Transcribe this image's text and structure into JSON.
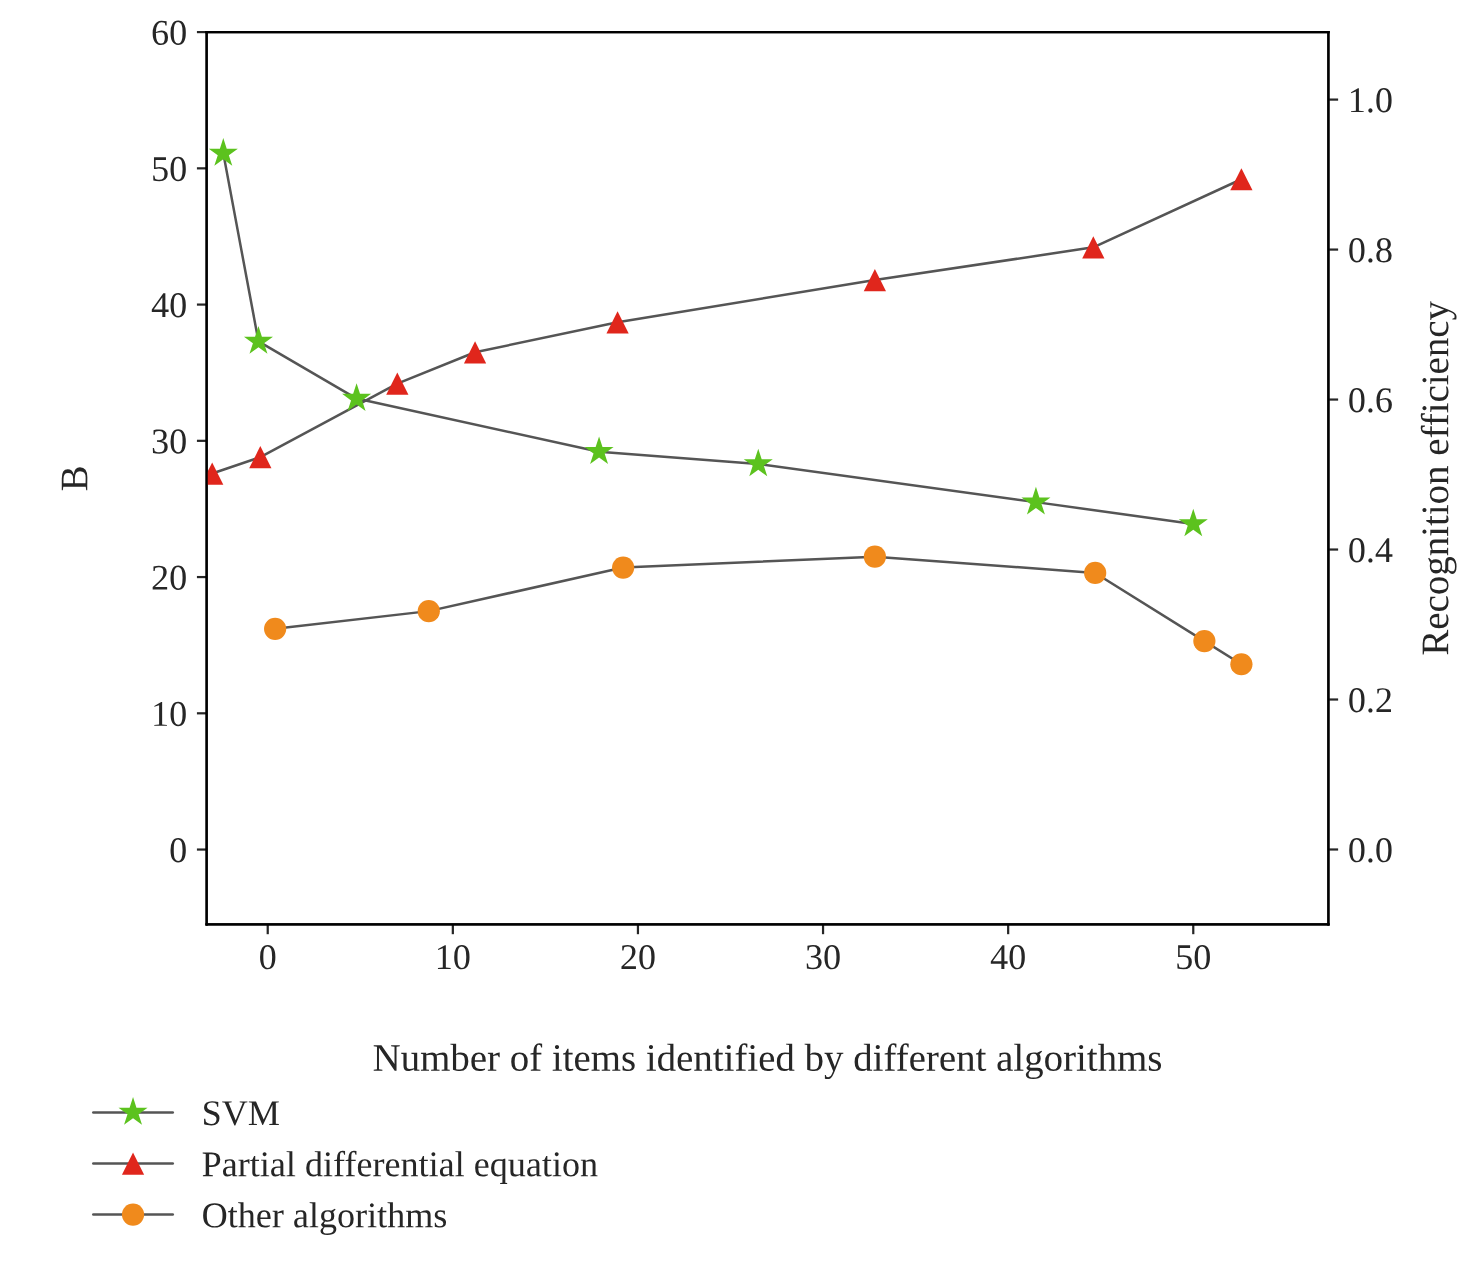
{
  "chart_data": {
    "type": "line",
    "xlabel": "Number of items identified by different algorithms",
    "ylabel": "B",
    "y2label": "Recognition efficiency",
    "xlim": [
      -3.3,
      57.3
    ],
    "xticks": [
      0,
      10,
      20,
      30,
      40,
      50
    ],
    "ylim": [
      -5.5,
      60
    ],
    "yticks": [
      0,
      10,
      20,
      30,
      40,
      50,
      60
    ],
    "y2lim": [
      -0.1,
      1.09
    ],
    "y2ticks": [
      {
        "value": 0,
        "label": "0.0"
      },
      {
        "value": 0.2,
        "label": "0.2"
      },
      {
        "value": 0.4,
        "label": "0.4"
      },
      {
        "value": 0.6,
        "label": "0.6"
      },
      {
        "value": 0.8,
        "label": "0.8"
      },
      {
        "value": 1.0,
        "label": "1.0"
      }
    ],
    "legend": "bottom",
    "series": [
      {
        "name": "SVM",
        "color": "#5cc21e",
        "marker": "star",
        "x": [
          -2.4,
          -0.5,
          4.8,
          17.9,
          26.5,
          41.5,
          50.0
        ],
        "values": [
          51.1,
          37.3,
          33.1,
          29.2,
          28.3,
          25.5,
          23.9
        ]
      },
      {
        "name": "Partial differential equation",
        "color": "#e0261c",
        "marker": "triangle",
        "x": [
          -3.0,
          -0.4,
          7.0,
          11.2,
          18.9,
          32.8,
          44.6,
          52.6
        ],
        "values": [
          27.6,
          28.8,
          34.2,
          36.5,
          38.7,
          41.8,
          44.2,
          49.2
        ]
      },
      {
        "name": "Other algorithms",
        "color": "#f08a1c",
        "marker": "circle",
        "x": [
          0.4,
          8.7,
          19.2,
          32.8,
          44.7,
          50.6,
          52.6
        ],
        "values": [
          16.2,
          17.5,
          20.7,
          21.5,
          20.3,
          15.3,
          13.6
        ]
      }
    ]
  }
}
